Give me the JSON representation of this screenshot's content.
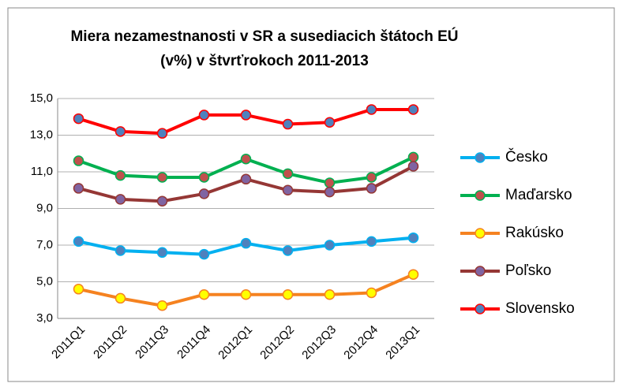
{
  "chart_data": {
    "type": "line",
    "title": [
      "Miera nezamestnanosti v SR a susediacich štátoch EÚ",
      "(v%) v štvrťrokoch 2011-2013"
    ],
    "categories": [
      "2011Q1",
      "2011Q2",
      "2011Q3",
      "2011Q4",
      "2012Q1",
      "2012Q2",
      "2012Q3",
      "2012Q4",
      "2013Q1"
    ],
    "series": [
      {
        "name": "Česko",
        "color": "#00b0f0",
        "marker_color": "#4f81bd",
        "values": [
          7.2,
          6.7,
          6.6,
          6.5,
          7.1,
          6.7,
          7.0,
          7.2,
          7.4
        ]
      },
      {
        "name": "Maďarsko",
        "color": "#00b050",
        "marker_color": "#c0504d",
        "values": [
          11.6,
          10.8,
          10.7,
          10.7,
          11.7,
          10.9,
          10.4,
          10.7,
          11.8
        ]
      },
      {
        "name": "Rakúsko",
        "color": "#f58220",
        "marker_color": "#ffff00",
        "values": [
          4.6,
          4.1,
          3.7,
          4.3,
          4.3,
          4.3,
          4.3,
          4.4,
          5.4
        ]
      },
      {
        "name": "Poľsko",
        "color": "#953735",
        "marker_color": "#8064a2",
        "values": [
          10.1,
          9.5,
          9.4,
          9.8,
          10.6,
          10.0,
          9.9,
          10.1,
          11.3
        ]
      },
      {
        "name": "Slovensko",
        "color": "#ff0000",
        "marker_color": "#4f81bd",
        "values": [
          13.9,
          13.2,
          13.1,
          14.1,
          14.1,
          13.6,
          13.7,
          14.4,
          14.4
        ]
      }
    ],
    "ylim": [
      3,
      15
    ],
    "yticks": [
      {
        "value": 3,
        "label": "3,0"
      },
      {
        "value": 5,
        "label": "5,0"
      },
      {
        "value": 7,
        "label": "7,0"
      },
      {
        "value": 9,
        "label": "9,0"
      },
      {
        "value": 11,
        "label": "11,0"
      },
      {
        "value": 13,
        "label": "13,0"
      },
      {
        "value": 15,
        "label": "15,0"
      }
    ],
    "grid": true,
    "legend": "right"
  }
}
